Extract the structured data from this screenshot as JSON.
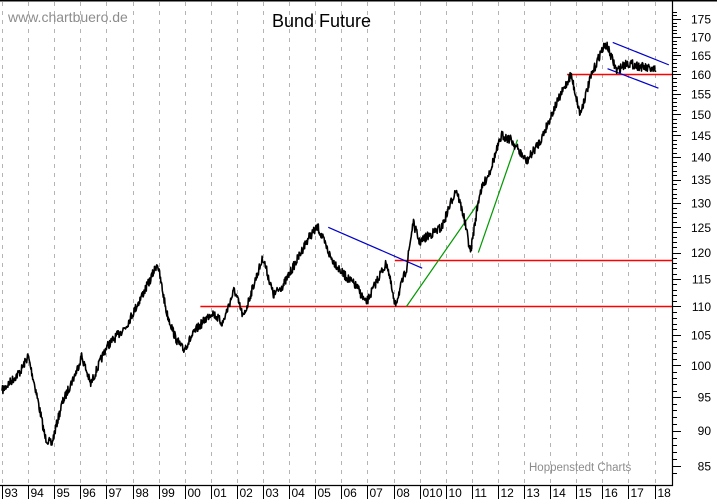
{
  "header": {
    "watermark": "www.chartbuero.de",
    "title": "Bund Future"
  },
  "footer": {
    "credit": "Hoppenstedt Charts"
  },
  "colors": {
    "price_line": "#000000",
    "support_line": "#ff0000",
    "downtrend_line": "#0000cc",
    "uptrend_line": "#009900",
    "grid": "#b4b4b4"
  },
  "chart_data": {
    "type": "line",
    "title": "Bund Future",
    "xlabel": "",
    "ylabel": "",
    "y_scale": "log",
    "ylim": [
      83,
      178
    ],
    "grid": {
      "vertical": true,
      "horizontal": false,
      "style": "dashed"
    },
    "legend": null,
    "x_tick_labels": [
      "93",
      "94",
      "95",
      "96",
      "97",
      "98",
      "99",
      "00",
      "01",
      "02",
      "03",
      "04",
      "05",
      "06",
      "07",
      "08",
      "010",
      "10",
      "11",
      "12",
      "13",
      "14",
      "15",
      "16",
      "17",
      "18"
    ],
    "y_tick_labels": [
      "85",
      "90",
      "95",
      "100",
      "105",
      "110",
      "115",
      "120",
      "125",
      "130",
      "135",
      "140",
      "145",
      "150",
      "155",
      "160",
      "165",
      "170",
      "175"
    ],
    "series": [
      {
        "name": "Bund Future",
        "x": [
          1993.0,
          1993.7,
          1994.0,
          1994.3,
          1994.65,
          1994.9,
          1995.3,
          1995.85,
          1996.05,
          1996.4,
          1997.0,
          1997.75,
          1998.15,
          1998.7,
          1998.95,
          1999.3,
          1999.65,
          1999.95,
          2000.45,
          2001.05,
          2001.45,
          2001.9,
          2002.25,
          2002.65,
          2003.0,
          2003.4,
          2003.8,
          2004.35,
          2004.75,
          2005.1,
          2005.6,
          2006.05,
          2006.6,
          2006.95,
          2007.5,
          2007.75,
          2008.05,
          2008.5,
          2008.75,
          2009.0,
          2009.25,
          2009.85,
          2010.4,
          2010.7,
          2010.95,
          2011.3,
          2011.7,
          2012.15,
          2012.5,
          2013.1,
          2013.65,
          2014.2,
          2014.8,
          2015.15,
          2015.55,
          2015.95,
          2016.15,
          2016.55,
          2016.95,
          2017.5,
          2018.05
        ],
        "values": [
          96,
          99,
          101.5,
          96,
          89,
          88,
          94,
          99,
          101.5,
          97,
          103,
          106.5,
          110,
          115,
          118,
          109,
          104.5,
          102.5,
          106,
          109,
          107,
          113,
          108,
          114,
          119,
          112,
          114,
          119,
          123,
          125,
          119,
          116,
          113.5,
          110.5,
          116,
          118,
          110,
          117,
          126,
          122,
          123,
          125,
          133,
          127,
          120,
          132,
          137,
          145,
          144,
          139,
          144,
          152,
          160,
          150,
          159,
          166,
          168,
          161,
          163,
          162,
          161
        ]
      }
    ],
    "annotations": [
      {
        "type": "hline",
        "color": "red",
        "value": 110,
        "x_from": 2000.6,
        "x_to": 2018.7
      },
      {
        "type": "hline",
        "color": "red",
        "value": 118.5,
        "x_from": 2008.05,
        "x_to": 2018.7
      },
      {
        "type": "hline",
        "color": "red",
        "value": 160,
        "x_from": 2014.65,
        "x_to": 2018.7
      },
      {
        "type": "trendline",
        "color": "blue",
        "from": [
          2005.5,
          125
        ],
        "to": [
          2009.1,
          117
        ]
      },
      {
        "type": "trendline",
        "color": "green",
        "from": [
          2008.5,
          110
        ],
        "to": [
          2011.25,
          130
        ]
      },
      {
        "type": "trendline",
        "color": "green",
        "from": [
          2011.25,
          120
        ],
        "to": [
          2012.75,
          144
        ]
      },
      {
        "type": "channel_top",
        "color": "blue",
        "from": [
          2016.4,
          168.5
        ],
        "to": [
          2018.55,
          162.5
        ]
      },
      {
        "type": "channel_bottom",
        "color": "blue",
        "from": [
          2016.2,
          161.5
        ],
        "to": [
          2018.15,
          156.5
        ]
      }
    ]
  }
}
